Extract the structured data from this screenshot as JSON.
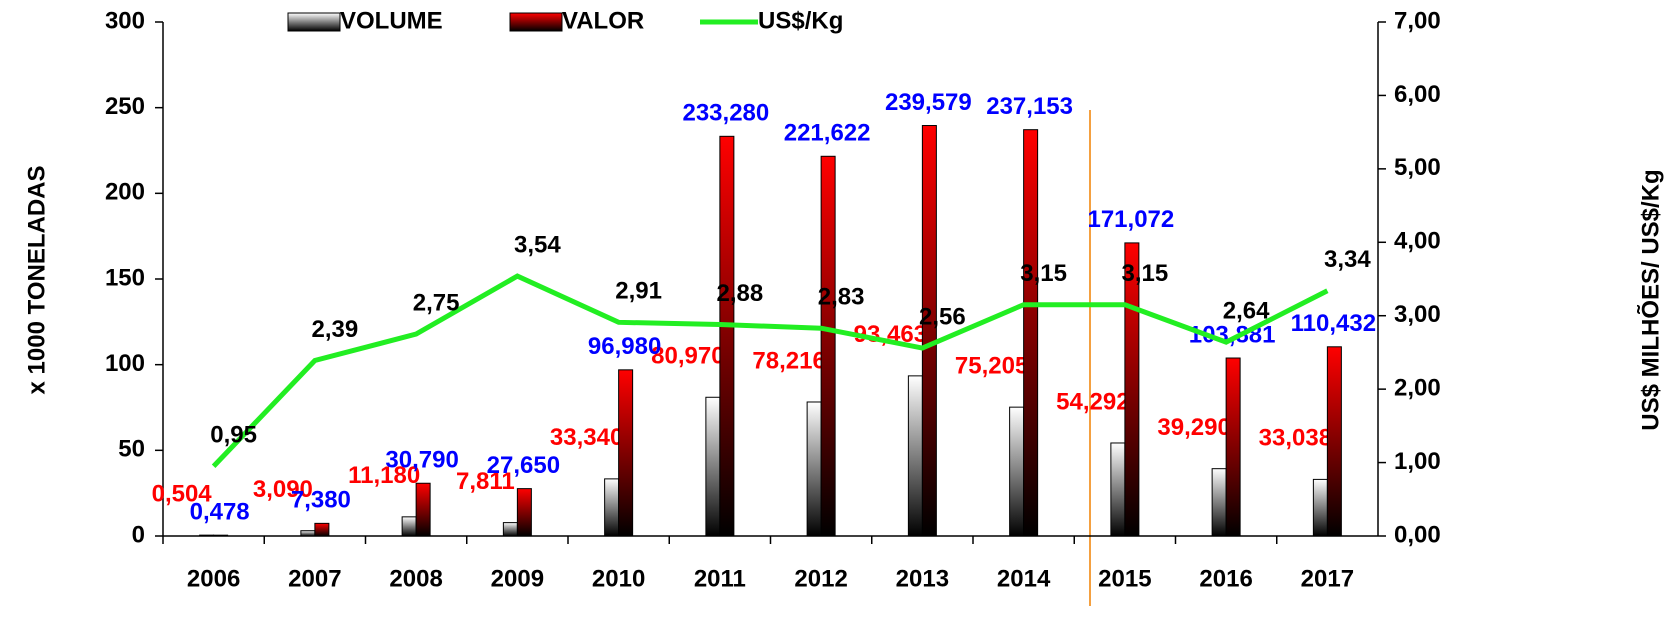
{
  "chart_data": {
    "type": "bar",
    "categories": [
      "2006",
      "2007",
      "2008",
      "2009",
      "2010",
      "2011",
      "2012",
      "2013",
      "2014",
      "2015",
      "2016",
      "2017"
    ],
    "y_label": "x 1000 TONELADAS",
    "y2_label": "US$ MILHÕES/ US$/Kg",
    "ylim": [
      0,
      300
    ],
    "yticks": [
      0,
      50,
      100,
      150,
      200,
      250,
      300
    ],
    "y2lim": [
      0,
      7
    ],
    "y2ticks": [
      {
        "value": 0,
        "label": "0,00"
      },
      {
        "value": 1,
        "label": "1,00"
      },
      {
        "value": 2,
        "label": "2,00"
      },
      {
        "value": 3,
        "label": "3,00"
      },
      {
        "value": 4,
        "label": "4,00"
      },
      {
        "value": 5,
        "label": "5,00"
      },
      {
        "value": 6,
        "label": "6,00"
      },
      {
        "value": 7,
        "label": "7,00"
      }
    ],
    "grid": false,
    "series": [
      {
        "name": "VOLUME",
        "color": "#ffffff",
        "label_color": "#ff0000",
        "values": [
          0.504,
          3.09,
          11.18,
          7.811,
          33.34,
          80.97,
          78.216,
          93.463,
          75.205,
          54.292,
          39.29,
          33.038
        ],
        "value_labels": [
          "0,504",
          "3,090",
          "11,180",
          "7,811",
          "33,340",
          "80,970",
          "78,216",
          "93,463",
          "75,205",
          "54,292",
          "39,290",
          "33,038"
        ]
      },
      {
        "name": "VALOR",
        "color": "#ff0000",
        "label_color": "#0000ff",
        "values": [
          0.478,
          7.38,
          30.79,
          27.65,
          96.98,
          233.28,
          221.622,
          239.579,
          237.153,
          171.072,
          103.881,
          110.432
        ],
        "value_labels": [
          "0,478",
          "7,380",
          "30,790",
          "27,650",
          "96,980",
          "233,280",
          "221,622",
          "239,579",
          "237,153",
          "171,072",
          "103,881",
          "110,432"
        ]
      },
      {
        "name": "US$/Kg",
        "type": "line",
        "axis": "y2",
        "color": "#22ee22",
        "label_color": "#000000",
        "values": [
          0.95,
          2.39,
          2.75,
          3.54,
          2.91,
          2.88,
          2.83,
          2.56,
          3.15,
          3.15,
          2.64,
          3.34
        ],
        "value_labels": [
          "0,95",
          "2,39",
          "2,75",
          "3,54",
          "2,91",
          "2,88",
          "2,83",
          "2,56",
          "3,15",
          "3,15",
          "2,64",
          "3,34"
        ]
      }
    ]
  }
}
